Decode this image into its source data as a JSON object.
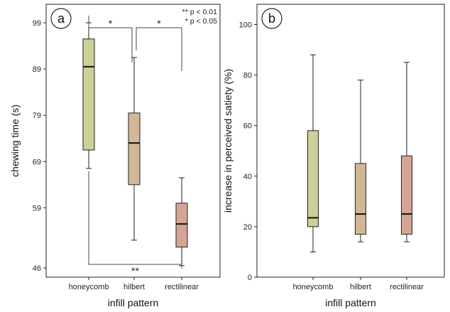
{
  "chart_data": [
    {
      "type": "box",
      "panel_label": "a",
      "xlabel": "infill pattern",
      "ylabel": "chewing time (s)",
      "categories": [
        "honeycomb",
        "hilbert",
        "rectilinear"
      ],
      "colors": [
        "#cdd097",
        "#d2b796",
        "#d4a594"
      ],
      "y_ticks": [
        46,
        59,
        69,
        79,
        89,
        99
      ],
      "ylim": [
        44,
        103
      ],
      "boxes": [
        {
          "whislo": 67.5,
          "q1": 71.5,
          "med": 89.5,
          "q3": 95.5,
          "whishi": 99.0
        },
        {
          "whislo": 52.0,
          "q1": 64.0,
          "med": 73.0,
          "q3": 79.5,
          "whishi": 91.5
        },
        {
          "whislo": 46.5,
          "q1": 50.5,
          "med": 55.5,
          "q3": 60.0,
          "whishi": 65.5
        }
      ],
      "significance": [
        {
          "from": 0,
          "to": 1,
          "label": "*",
          "position": "top"
        },
        {
          "from": 1,
          "to": 2,
          "label": "*",
          "position": "top"
        },
        {
          "from": 0,
          "to": 2,
          "label": "**",
          "position": "bottom"
        }
      ],
      "legend_notes": [
        "** p < 0.01",
        "* p < 0.05"
      ]
    },
    {
      "type": "box",
      "panel_label": "b",
      "xlabel": "infill pattern",
      "ylabel": "increase in perceived satiety (%)",
      "categories": [
        "honeycomb",
        "hilbert",
        "rectilinear"
      ],
      "colors": [
        "#cdd097",
        "#d2b796",
        "#d4a594"
      ],
      "y_ticks": [
        0,
        20,
        40,
        60,
        80,
        100
      ],
      "ylim": [
        0,
        108
      ],
      "boxes": [
        {
          "whislo": 10,
          "q1": 20,
          "med": 23.5,
          "q3": 58,
          "whishi": 88
        },
        {
          "whislo": 14,
          "q1": 17,
          "med": 25,
          "q3": 45,
          "whishi": 78
        },
        {
          "whislo": 14,
          "q1": 17,
          "med": 25,
          "q3": 48,
          "whishi": 85
        }
      ]
    }
  ]
}
